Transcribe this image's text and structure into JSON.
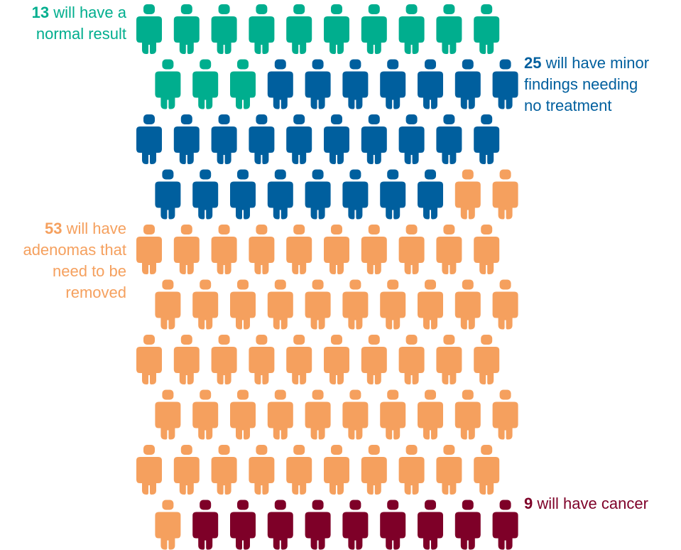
{
  "chart_data": {
    "type": "pictogram",
    "total": 100,
    "per_row": 10,
    "categories": [
      {
        "key": "normal",
        "count": 13,
        "text_lines": [
          "will have a",
          "normal result"
        ],
        "color": "#00ae8e"
      },
      {
        "key": "minor",
        "count": 25,
        "text_lines": [
          "will have minor",
          "findings needing",
          "no treatment"
        ],
        "color": "#005f9e"
      },
      {
        "key": "adenoma",
        "count": 53,
        "text_lines": [
          "will have",
          "adenomas that",
          "need to be",
          "removed"
        ],
        "color": "#f5a05e"
      },
      {
        "key": "cancer",
        "count": 9,
        "text_lines": [
          "will have cancer"
        ],
        "color": "#7e0028"
      }
    ]
  }
}
